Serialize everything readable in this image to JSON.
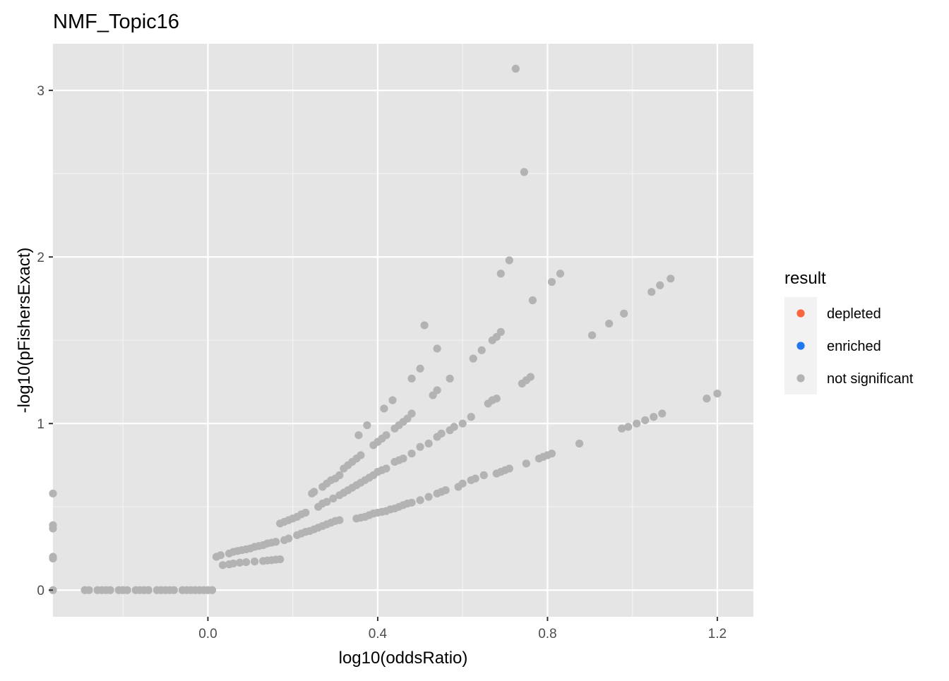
{
  "chart_data": {
    "type": "scatter",
    "title": "NMF_Topic16",
    "xlabel": "log10(oddsRatio)",
    "ylabel": "-log10(pFishersExact)",
    "xlim": [
      -0.365,
      1.285
    ],
    "ylim": [
      -0.16,
      3.28
    ],
    "x_ticks": [
      0.0,
      0.4,
      0.8,
      1.2
    ],
    "x_tick_labels": [
      "0.0",
      "0.4",
      "0.8",
      "1.2"
    ],
    "y_ticks": [
      0,
      1,
      2,
      3
    ],
    "y_tick_labels": [
      "0",
      "1",
      "2",
      "3"
    ],
    "grid": true,
    "legend": {
      "title": "result",
      "placement": "right",
      "entries": [
        {
          "label": "depleted",
          "color": "#F8663E"
        },
        {
          "label": "enriched",
          "color": "#1F78F0"
        },
        {
          "label": "not significant",
          "color": "#B3B3B3"
        }
      ]
    },
    "series": [
      {
        "name": "not significant",
        "color": "#B3B3B3",
        "points": [
          [
            -0.365,
            0.0
          ],
          [
            -0.365,
            0.19
          ],
          [
            -0.365,
            0.2
          ],
          [
            -0.365,
            0.37
          ],
          [
            -0.365,
            0.39
          ],
          [
            -0.365,
            0.58
          ],
          [
            -0.29,
            0.0
          ],
          [
            -0.28,
            0.0
          ],
          [
            -0.26,
            0.0
          ],
          [
            -0.25,
            0.0
          ],
          [
            -0.24,
            0.0
          ],
          [
            -0.23,
            0.0
          ],
          [
            -0.21,
            0.0
          ],
          [
            -0.2,
            0.0
          ],
          [
            -0.19,
            0.0
          ],
          [
            -0.17,
            0.0
          ],
          [
            -0.16,
            0.0
          ],
          [
            -0.15,
            0.0
          ],
          [
            -0.14,
            0.0
          ],
          [
            -0.12,
            0.0
          ],
          [
            -0.11,
            0.0
          ],
          [
            -0.1,
            0.0
          ],
          [
            -0.09,
            0.0
          ],
          [
            -0.08,
            0.0
          ],
          [
            -0.06,
            0.0
          ],
          [
            -0.05,
            0.0
          ],
          [
            -0.04,
            0.0
          ],
          [
            -0.03,
            0.0
          ],
          [
            -0.02,
            0.0
          ],
          [
            -0.01,
            0.0
          ],
          [
            0.0,
            0.0
          ],
          [
            0.01,
            0.0
          ],
          [
            0.02,
            0.2
          ],
          [
            0.03,
            0.21
          ],
          [
            0.05,
            0.22
          ],
          [
            0.06,
            0.23
          ],
          [
            0.07,
            0.235
          ],
          [
            0.08,
            0.24
          ],
          [
            0.09,
            0.245
          ],
          [
            0.1,
            0.25
          ],
          [
            0.11,
            0.26
          ],
          [
            0.12,
            0.265
          ],
          [
            0.13,
            0.27
          ],
          [
            0.14,
            0.28
          ],
          [
            0.15,
            0.285
          ],
          [
            0.16,
            0.29
          ],
          [
            0.035,
            0.15
          ],
          [
            0.05,
            0.155
          ],
          [
            0.06,
            0.16
          ],
          [
            0.075,
            0.165
          ],
          [
            0.09,
            0.168
          ],
          [
            0.11,
            0.172
          ],
          [
            0.13,
            0.175
          ],
          [
            0.14,
            0.178
          ],
          [
            0.15,
            0.18
          ],
          [
            0.16,
            0.183
          ],
          [
            0.17,
            0.185
          ],
          [
            0.17,
            0.4
          ],
          [
            0.18,
            0.41
          ],
          [
            0.19,
            0.42
          ],
          [
            0.2,
            0.43
          ],
          [
            0.21,
            0.44
          ],
          [
            0.22,
            0.455
          ],
          [
            0.23,
            0.465
          ],
          [
            0.245,
            0.58
          ],
          [
            0.25,
            0.59
          ],
          [
            0.27,
            0.62
          ],
          [
            0.28,
            0.64
          ],
          [
            0.29,
            0.66
          ],
          [
            0.3,
            0.67
          ],
          [
            0.31,
            0.69
          ],
          [
            0.32,
            0.73
          ],
          [
            0.33,
            0.75
          ],
          [
            0.34,
            0.77
          ],
          [
            0.35,
            0.79
          ],
          [
            0.36,
            0.81
          ],
          [
            0.355,
            0.93
          ],
          [
            0.375,
            0.99
          ],
          [
            0.39,
            0.87
          ],
          [
            0.4,
            0.89
          ],
          [
            0.41,
            0.91
          ],
          [
            0.42,
            0.93
          ],
          [
            0.415,
            1.09
          ],
          [
            0.435,
            1.14
          ],
          [
            0.44,
            0.97
          ],
          [
            0.45,
            0.99
          ],
          [
            0.46,
            1.01
          ],
          [
            0.47,
            1.03
          ],
          [
            0.48,
            1.06
          ],
          [
            0.48,
            1.27
          ],
          [
            0.5,
            1.33
          ],
          [
            0.51,
            1.59
          ],
          [
            0.53,
            1.17
          ],
          [
            0.54,
            1.2
          ],
          [
            0.54,
            1.45
          ],
          [
            0.57,
            1.27
          ],
          [
            0.18,
            0.3
          ],
          [
            0.19,
            0.31
          ],
          [
            0.21,
            0.33
          ],
          [
            0.22,
            0.34
          ],
          [
            0.23,
            0.35
          ],
          [
            0.24,
            0.355
          ],
          [
            0.25,
            0.365
          ],
          [
            0.26,
            0.375
          ],
          [
            0.27,
            0.385
          ],
          [
            0.28,
            0.395
          ],
          [
            0.29,
            0.405
          ],
          [
            0.3,
            0.415
          ],
          [
            0.31,
            0.42
          ],
          [
            0.26,
            0.5
          ],
          [
            0.27,
            0.52
          ],
          [
            0.28,
            0.53
          ],
          [
            0.295,
            0.55
          ],
          [
            0.31,
            0.57
          ],
          [
            0.32,
            0.585
          ],
          [
            0.33,
            0.6
          ],
          [
            0.34,
            0.615
          ],
          [
            0.35,
            0.63
          ],
          [
            0.36,
            0.645
          ],
          [
            0.37,
            0.66
          ],
          [
            0.38,
            0.675
          ],
          [
            0.39,
            0.69
          ],
          [
            0.4,
            0.71
          ],
          [
            0.41,
            0.72
          ],
          [
            0.42,
            0.73
          ],
          [
            0.44,
            0.77
          ],
          [
            0.45,
            0.78
          ],
          [
            0.46,
            0.79
          ],
          [
            0.48,
            0.82
          ],
          [
            0.5,
            0.86
          ],
          [
            0.52,
            0.88
          ],
          [
            0.54,
            0.92
          ],
          [
            0.55,
            0.94
          ],
          [
            0.57,
            0.96
          ],
          [
            0.58,
            0.98
          ],
          [
            0.6,
            1.0
          ],
          [
            0.62,
            1.04
          ],
          [
            0.625,
            1.39
          ],
          [
            0.645,
            1.44
          ],
          [
            0.66,
            1.12
          ],
          [
            0.67,
            1.14
          ],
          [
            0.68,
            1.15
          ],
          [
            0.67,
            1.5
          ],
          [
            0.68,
            1.52
          ],
          [
            0.69,
            1.55
          ],
          [
            0.69,
            1.9
          ],
          [
            0.71,
            1.98
          ],
          [
            0.725,
            3.13
          ],
          [
            0.745,
            2.51
          ],
          [
            0.74,
            1.24
          ],
          [
            0.75,
            1.26
          ],
          [
            0.76,
            1.28
          ],
          [
            0.765,
            1.74
          ],
          [
            0.81,
            1.85
          ],
          [
            0.83,
            1.9
          ],
          [
            0.35,
            0.43
          ],
          [
            0.36,
            0.435
          ],
          [
            0.37,
            0.44
          ],
          [
            0.38,
            0.45
          ],
          [
            0.39,
            0.46
          ],
          [
            0.4,
            0.465
          ],
          [
            0.41,
            0.47
          ],
          [
            0.42,
            0.475
          ],
          [
            0.43,
            0.485
          ],
          [
            0.44,
            0.49
          ],
          [
            0.45,
            0.5
          ],
          [
            0.46,
            0.51
          ],
          [
            0.47,
            0.52
          ],
          [
            0.48,
            0.525
          ],
          [
            0.5,
            0.54
          ],
          [
            0.52,
            0.56
          ],
          [
            0.54,
            0.58
          ],
          [
            0.55,
            0.59
          ],
          [
            0.56,
            0.6
          ],
          [
            0.59,
            0.62
          ],
          [
            0.6,
            0.64
          ],
          [
            0.62,
            0.66
          ],
          [
            0.63,
            0.67
          ],
          [
            0.65,
            0.69
          ],
          [
            0.68,
            0.7
          ],
          [
            0.69,
            0.71
          ],
          [
            0.7,
            0.72
          ],
          [
            0.71,
            0.73
          ],
          [
            0.75,
            0.76
          ],
          [
            0.78,
            0.79
          ],
          [
            0.79,
            0.8
          ],
          [
            0.8,
            0.81
          ],
          [
            0.81,
            0.82
          ],
          [
            0.875,
            0.88
          ],
          [
            0.905,
            1.53
          ],
          [
            0.945,
            1.6
          ],
          [
            0.975,
            0.97
          ],
          [
            0.98,
            1.66
          ],
          [
            0.99,
            0.98
          ],
          [
            1.01,
            1.0
          ],
          [
            1.03,
            1.02
          ],
          [
            1.045,
            1.79
          ],
          [
            1.05,
            1.04
          ],
          [
            1.065,
            1.83
          ],
          [
            1.07,
            1.06
          ],
          [
            1.09,
            1.87
          ],
          [
            1.175,
            1.15
          ],
          [
            1.2,
            1.18
          ]
        ]
      }
    ]
  }
}
